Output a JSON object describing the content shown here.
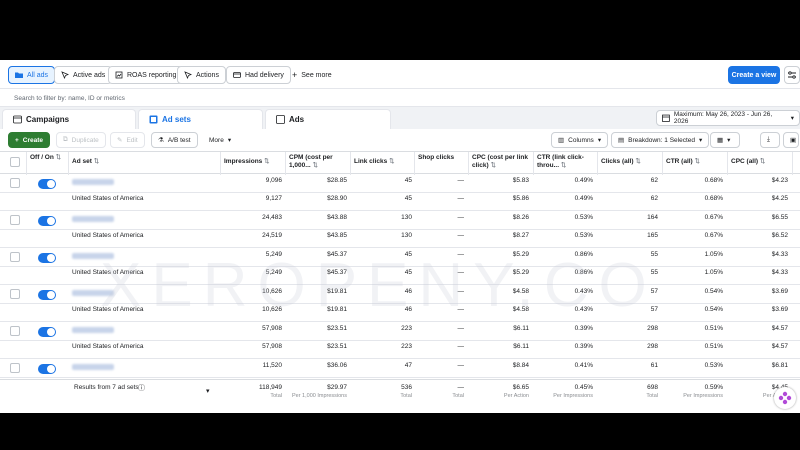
{
  "toolbar": {
    "buttons": [
      {
        "label": "All ads",
        "icon": "folder-icon",
        "active": true
      },
      {
        "label": "Active ads",
        "icon": "cursor-icon",
        "active": false
      },
      {
        "label": "ROAS reporting",
        "icon": "chart-icon",
        "active": false
      },
      {
        "label": "Actions",
        "icon": "cursor-icon",
        "active": false
      },
      {
        "label": "Had delivery",
        "icon": "delivery-icon",
        "active": false
      },
      {
        "label": "See more",
        "icon": "plus-icon",
        "active": false
      }
    ],
    "create_view": "Create a view"
  },
  "filter": {
    "placeholder": "Search to filter by: name, ID or metrics"
  },
  "tabs": [
    {
      "label": "Campaigns",
      "icon": "campaign-icon",
      "active": false
    },
    {
      "label": "Ad sets",
      "icon": "adset-icon",
      "active": true
    },
    {
      "label": "Ads",
      "icon": "ad-icon",
      "active": false
    }
  ],
  "date_range": "Maximum: May 26, 2023 - Jun 26, 2026",
  "actions": {
    "create": "Create",
    "duplicate": "Duplicate",
    "edit": "Edit",
    "ab_test": "A/B test",
    "more": "More",
    "columns": "Columns",
    "breakdown": "Breakdown: 1 Selected"
  },
  "columns": [
    "Off / On",
    "Ad set",
    "Impressions",
    "CPM (cost per 1,000...",
    "Link clicks",
    "Shop clicks",
    "CPC (cost per link click)",
    "CTR (link click-throu...",
    "Clicks (all)",
    "CTR (all)",
    "CPC (all)"
  ],
  "rows": [
    {
      "kind": "adset",
      "impressions": "9,096",
      "cpm": "$28.85",
      "link_clicks": "45",
      "shop_clicks": "—",
      "cpc": "$5.83",
      "ctr_link": "0.49%",
      "clicks_all": "62",
      "ctr_all": "0.68%",
      "cpc_all": "$4.23"
    },
    {
      "kind": "country",
      "country": "United States of America",
      "impressions": "9,127",
      "cpm": "$28.90",
      "link_clicks": "45",
      "shop_clicks": "—",
      "cpc": "$5.86",
      "ctr_link": "0.49%",
      "clicks_all": "62",
      "ctr_all": "0.68%",
      "cpc_all": "$4.25"
    },
    {
      "kind": "adset",
      "impressions": "24,483",
      "cpm": "$43.88",
      "link_clicks": "130",
      "shop_clicks": "—",
      "cpc": "$8.26",
      "ctr_link": "0.53%",
      "clicks_all": "164",
      "ctr_all": "0.67%",
      "cpc_all": "$6.55"
    },
    {
      "kind": "country",
      "country": "United States of America",
      "impressions": "24,519",
      "cpm": "$43.85",
      "link_clicks": "130",
      "shop_clicks": "—",
      "cpc": "$8.27",
      "ctr_link": "0.53%",
      "clicks_all": "165",
      "ctr_all": "0.67%",
      "cpc_all": "$6.52"
    },
    {
      "kind": "adset",
      "impressions": "5,249",
      "cpm": "$45.37",
      "link_clicks": "45",
      "shop_clicks": "—",
      "cpc": "$5.29",
      "ctr_link": "0.86%",
      "clicks_all": "55",
      "ctr_all": "1.05%",
      "cpc_all": "$4.33"
    },
    {
      "kind": "country",
      "country": "United States of America",
      "impressions": "5,249",
      "cpm": "$45.37",
      "link_clicks": "45",
      "shop_clicks": "—",
      "cpc": "$5.29",
      "ctr_link": "0.86%",
      "clicks_all": "55",
      "ctr_all": "1.05%",
      "cpc_all": "$4.33"
    },
    {
      "kind": "adset",
      "impressions": "10,626",
      "cpm": "$19.81",
      "link_clicks": "46",
      "shop_clicks": "—",
      "cpc": "$4.58",
      "ctr_link": "0.43%",
      "clicks_all": "57",
      "ctr_all": "0.54%",
      "cpc_all": "$3.69"
    },
    {
      "kind": "country",
      "country": "United States of America",
      "impressions": "10,626",
      "cpm": "$19.81",
      "link_clicks": "46",
      "shop_clicks": "—",
      "cpc": "$4.58",
      "ctr_link": "0.43%",
      "clicks_all": "57",
      "ctr_all": "0.54%",
      "cpc_all": "$3.69"
    },
    {
      "kind": "adset",
      "impressions": "57,908",
      "cpm": "$23.51",
      "link_clicks": "223",
      "shop_clicks": "—",
      "cpc": "$6.11",
      "ctr_link": "0.39%",
      "clicks_all": "298",
      "ctr_all": "0.51%",
      "cpc_all": "$4.57"
    },
    {
      "kind": "country",
      "country": "United States of America",
      "impressions": "57,908",
      "cpm": "$23.51",
      "link_clicks": "223",
      "shop_clicks": "—",
      "cpc": "$6.11",
      "ctr_link": "0.39%",
      "clicks_all": "298",
      "ctr_all": "0.51%",
      "cpc_all": "$4.57"
    },
    {
      "kind": "adset",
      "impressions": "11,520",
      "cpm": "$36.06",
      "link_clicks": "47",
      "shop_clicks": "—",
      "cpc": "$8.84",
      "ctr_link": "0.41%",
      "clicks_all": "61",
      "ctr_all": "0.53%",
      "cpc_all": "$6.81"
    }
  ],
  "footer": {
    "results_label": "Results from 7 ad sets",
    "impressions": "118,949",
    "impressions_sub": "Total",
    "cpm": "$29.97",
    "cpm_sub": "Per 1,000 Impressions",
    "link_clicks": "536",
    "link_clicks_sub": "Total",
    "shop_clicks": "—",
    "shop_clicks_sub": "Total",
    "cpc": "$6.65",
    "cpc_sub": "Per Action",
    "ctr_link": "0.45%",
    "ctr_link_sub": "Per Impressions",
    "clicks_all": "698",
    "clicks_all_sub": "Total",
    "ctr_all": "0.59%",
    "ctr_all_sub": "Per Impressions",
    "cpc_all": "$4.45",
    "cpc_all_sub": "Per Action"
  },
  "watermark": "XEROPENY.CO",
  "colors": {
    "accent": "#1b74e4",
    "create_green": "#2e7d32",
    "toggle_on": "#1b74e4"
  }
}
